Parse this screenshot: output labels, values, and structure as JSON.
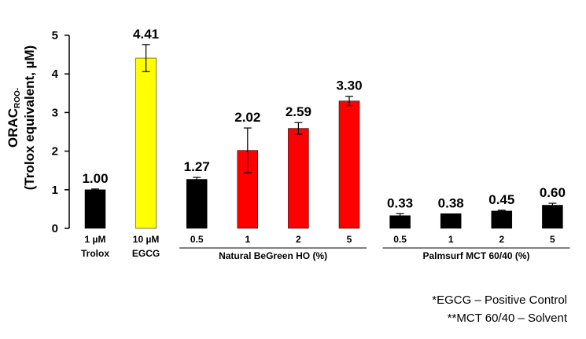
{
  "chart_data": {
    "type": "bar",
    "ylabel_main": "ORAC",
    "ylabel_sub": "ROO-",
    "ylabel_line2": "(Trolox equivalent, µM)",
    "ylim": [
      0,
      5
    ],
    "yticks": [
      "0",
      "1",
      "2",
      "3",
      "4",
      "5"
    ],
    "grid": false,
    "bars": [
      {
        "label_line1": "1 µM",
        "label_line2": "Trolox",
        "value": 1.0,
        "value_label": "1.00",
        "error": 0.02,
        "color": "#000000"
      },
      {
        "label_line1": "10 µM",
        "label_line2": "EGCG",
        "value": 4.41,
        "value_label": "4.41",
        "error": 0.35,
        "color": "#ffff00"
      },
      {
        "label_line1": "0.5",
        "label_line2": "",
        "value": 1.27,
        "value_label": "1.27",
        "error": 0.05,
        "color": "#000000"
      },
      {
        "label_line1": "1",
        "label_line2": "",
        "value": 2.02,
        "value_label": "2.02",
        "error": 0.58,
        "color": "#ff0000"
      },
      {
        "label_line1": "2",
        "label_line2": "",
        "value": 2.59,
        "value_label": "2.59",
        "error": 0.15,
        "color": "#ff0000"
      },
      {
        "label_line1": "5",
        "label_line2": "",
        "value": 3.3,
        "value_label": "3.30",
        "error": 0.12,
        "color": "#ff0000"
      },
      {
        "label_line1": "0.5",
        "label_line2": "",
        "value": 0.33,
        "value_label": "0.33",
        "error": 0.05,
        "color": "#000000"
      },
      {
        "label_line1": "1",
        "label_line2": "",
        "value": 0.38,
        "value_label": "0.38",
        "error": 0.0,
        "color": "#000000"
      },
      {
        "label_line1": "2",
        "label_line2": "",
        "value": 0.45,
        "value_label": "0.45",
        "error": 0.02,
        "color": "#000000"
      },
      {
        "label_line1": "5",
        "label_line2": "",
        "value": 0.6,
        "value_label": "0.60",
        "error": 0.05,
        "color": "#000000"
      }
    ],
    "groups": [
      {
        "label": "Natural BeGreen HO (%)",
        "first_bar": 2,
        "last_bar": 5
      },
      {
        "label": "Palmsurf MCT 60/40 (%)",
        "first_bar": 6,
        "last_bar": 9
      }
    ]
  },
  "notes": {
    "line1": "*EGCG – Positive Control",
    "line2": "**MCT 60/40 – Solvent"
  }
}
